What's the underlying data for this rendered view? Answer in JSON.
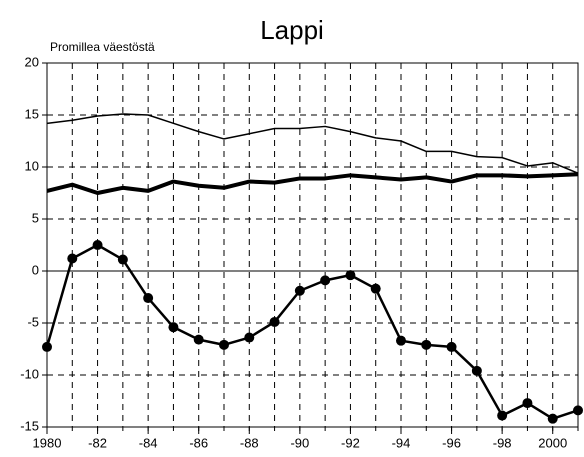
{
  "chart_data": {
    "type": "line",
    "title": "Lappi",
    "y_label": "Promillea väestöstä",
    "x": [
      1980,
      1981,
      1982,
      1983,
      1984,
      1985,
      1986,
      1987,
      1988,
      1989,
      1990,
      1991,
      1992,
      1993,
      1994,
      1995,
      1996,
      1997,
      1998,
      1999,
      2000,
      2001
    ],
    "series": [
      {
        "color": "#000000",
        "width": 1.5,
        "markers": false,
        "values": [
          14.2,
          14.5,
          14.9,
          15.1,
          15.0,
          14.2,
          13.4,
          12.7,
          13.2,
          13.7,
          13.7,
          13.9,
          13.4,
          12.8,
          12.5,
          11.5,
          11.5,
          11.0,
          10.9,
          10.1,
          10.4,
          9.4
        ]
      },
      {
        "color": "#000000",
        "width": 4,
        "markers": false,
        "values": [
          7.7,
          8.3,
          7.5,
          8.0,
          7.7,
          8.6,
          8.2,
          8.0,
          8.6,
          8.5,
          8.9,
          8.9,
          9.2,
          9.0,
          8.8,
          9.0,
          8.6,
          9.2,
          9.2,
          9.1,
          9.2,
          9.3
        ]
      },
      {
        "color": "#000000",
        "width": 2.5,
        "markers": true,
        "values": [
          -7.3,
          1.2,
          2.5,
          1.1,
          -2.6,
          -5.4,
          -6.6,
          -7.1,
          -6.4,
          -4.9,
          -1.9,
          -0.9,
          -0.4,
          -1.7,
          -6.7,
          -7.1,
          -7.3,
          -9.6,
          -13.9,
          -12.7,
          -14.2,
          -13.4
        ]
      }
    ],
    "xlim": [
      1980,
      2001
    ],
    "xticks": [
      1980,
      {
        "value": 1982,
        "label": "-82"
      },
      {
        "value": 1984,
        "label": "-84"
      },
      {
        "value": 1986,
        "label": "-86"
      },
      {
        "value": 1988,
        "label": "-88"
      },
      {
        "value": 1990,
        "label": "-90"
      },
      {
        "value": 1992,
        "label": "-92"
      },
      {
        "value": 1994,
        "label": "-94"
      },
      {
        "value": 1996,
        "label": "-96"
      },
      {
        "value": 1998,
        "label": "-98"
      },
      2000
    ],
    "ylim": [
      -15,
      20
    ],
    "yticks": [
      -15,
      -10,
      -5,
      0,
      5,
      10,
      15,
      20
    ],
    "grid": true
  }
}
